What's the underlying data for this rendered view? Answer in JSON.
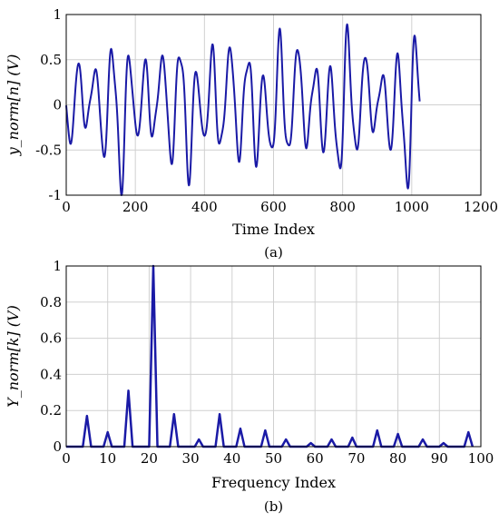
{
  "chart_data": [
    {
      "type": "line",
      "caption": "(a)",
      "xlabel": "Time Index",
      "ylabel": "y_norm[n] (V)",
      "xlim": [
        0,
        1200
      ],
      "ylim": [
        -1,
        1
      ],
      "xticks": [
        0,
        200,
        400,
        600,
        800,
        1000,
        1200
      ],
      "yticks": [
        -1,
        -0.5,
        0,
        0.5,
        1
      ],
      "grid": true,
      "series": [
        {
          "color": "#1a1aa6",
          "n_points": 1024,
          "x_range": [
            0,
            1023
          ],
          "components": [
            {
              "frequency_index": 5,
              "amplitude": 0.17
            },
            {
              "frequency_index": 10,
              "amplitude": 0.08
            },
            {
              "frequency_index": 15,
              "amplitude": 0.31
            },
            {
              "frequency_index": 21,
              "amplitude": 1.0
            },
            {
              "frequency_index": 26,
              "amplitude": 0.18
            },
            {
              "frequency_index": 37,
              "amplitude": 0.18
            },
            {
              "frequency_index": 42,
              "amplitude": 0.1
            },
            {
              "frequency_index": 48,
              "amplitude": 0.09
            }
          ]
        }
      ]
    },
    {
      "type": "line",
      "caption": "(b)",
      "xlabel": "Frequency Index",
      "ylabel": "Y_norm[k] (V)",
      "xlim": [
        0,
        100
      ],
      "ylim": [
        0,
        1
      ],
      "xticks": [
        0,
        10,
        20,
        30,
        40,
        50,
        60,
        70,
        80,
        90,
        100
      ],
      "yticks": [
        0,
        0.2,
        0.4,
        0.6,
        0.8,
        1
      ],
      "grid": true,
      "series": [
        {
          "color": "#1a1aa6",
          "x_range": [
            0,
            98
          ],
          "peaks": [
            {
              "x": 5,
              "y": 0.17
            },
            {
              "x": 10,
              "y": 0.08
            },
            {
              "x": 15,
              "y": 0.31
            },
            {
              "x": 21,
              "y": 1.0
            },
            {
              "x": 26,
              "y": 0.18
            },
            {
              "x": 32,
              "y": 0.04
            },
            {
              "x": 37,
              "y": 0.18
            },
            {
              "x": 42,
              "y": 0.1
            },
            {
              "x": 48,
              "y": 0.09
            },
            {
              "x": 53,
              "y": 0.04
            },
            {
              "x": 59,
              "y": 0.02
            },
            {
              "x": 64,
              "y": 0.04
            },
            {
              "x": 69,
              "y": 0.05
            },
            {
              "x": 75,
              "y": 0.09
            },
            {
              "x": 80,
              "y": 0.07
            },
            {
              "x": 86,
              "y": 0.04
            },
            {
              "x": 91,
              "y": 0.02
            },
            {
              "x": 97,
              "y": 0.08
            }
          ]
        }
      ]
    }
  ]
}
